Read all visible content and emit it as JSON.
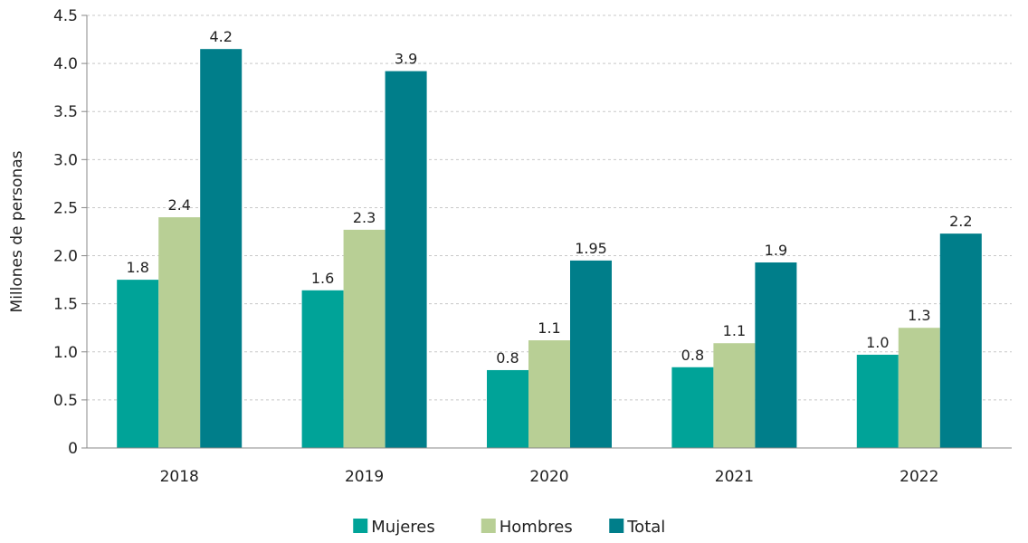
{
  "chart_data": {
    "type": "bar",
    "categories": [
      "2018",
      "2019",
      "2020",
      "2021",
      "2022"
    ],
    "series": [
      {
        "name": "Mujeres",
        "values": [
          1.75,
          1.64,
          0.81,
          0.84,
          0.97
        ],
        "labels": [
          "1.8",
          "1.6",
          "0.8",
          "0.8",
          "1.0"
        ],
        "color": "#00a398"
      },
      {
        "name": "Hombres",
        "values": [
          2.4,
          2.27,
          1.12,
          1.09,
          1.25
        ],
        "labels": [
          "2.4",
          "2.3",
          "1.1",
          "1.1",
          "1.3"
        ],
        "color": "#b8cf95"
      },
      {
        "name": "Total",
        "values": [
          4.15,
          3.92,
          1.95,
          1.93,
          2.23
        ],
        "labels": [
          "4.2",
          "3.9",
          "1.95",
          "1.9",
          "2.2"
        ],
        "color": "#007e8a"
      }
    ],
    "yticks": [
      "0",
      "0.5",
      "1.0",
      "1.5",
      "2.0",
      "2.5",
      "3.0",
      "3.5",
      "4.0",
      "4.5"
    ],
    "ylim": [
      0,
      4.5
    ],
    "ylabel": "Millones de personas",
    "xlabel": "",
    "title": "",
    "grid": true,
    "legend_position": "bottom-center"
  }
}
